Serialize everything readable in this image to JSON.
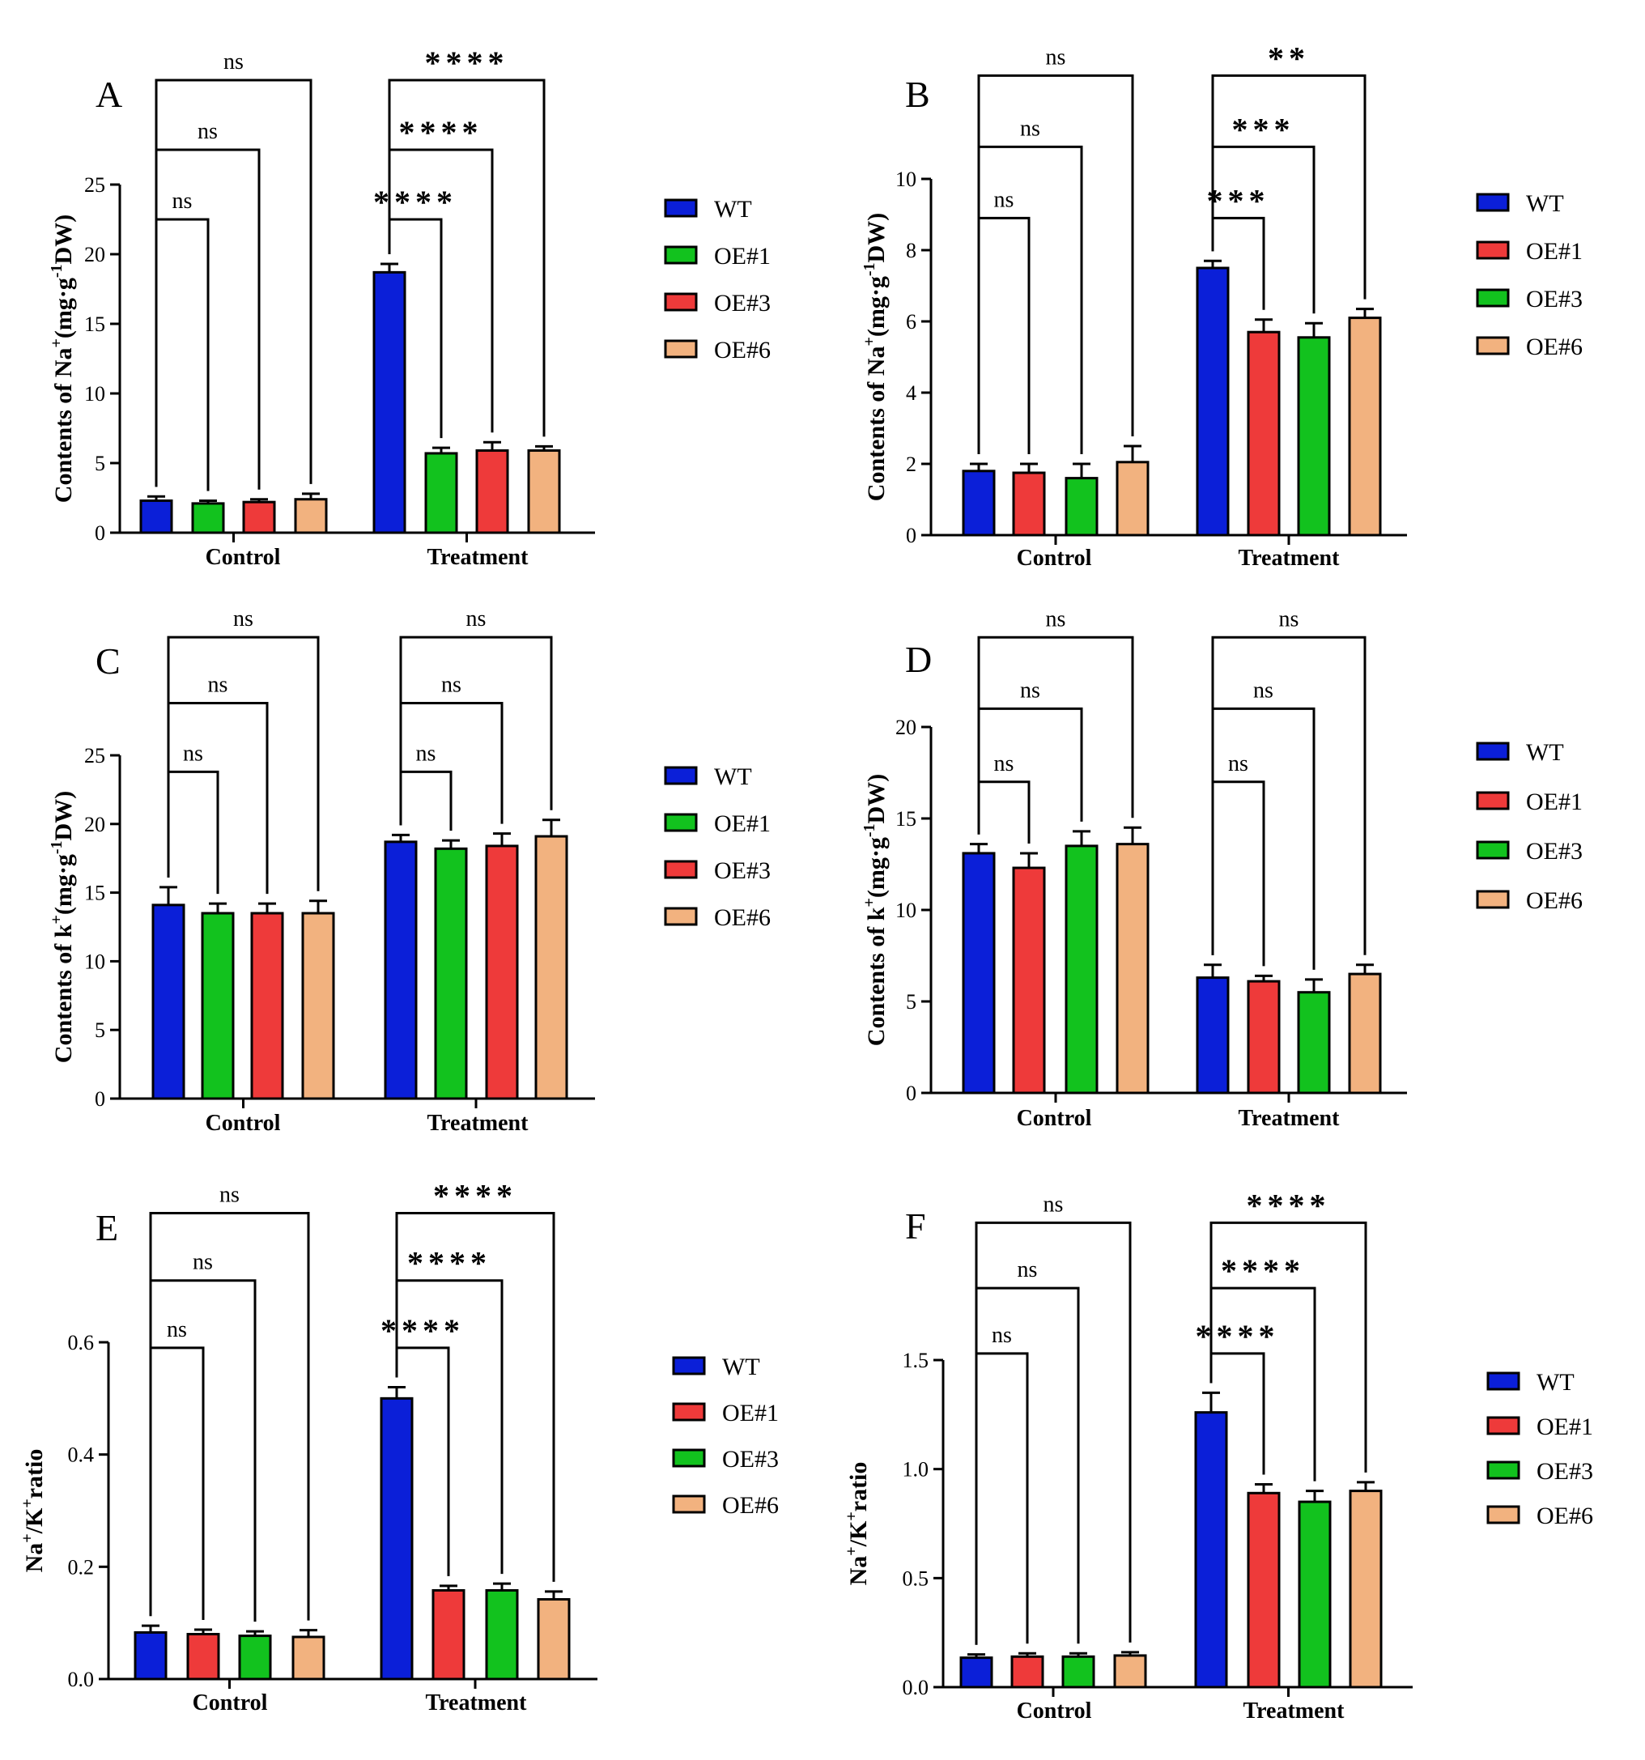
{
  "chart_data": [
    {
      "panel": "A",
      "type": "bar",
      "ylabel_main": "Contents of Na",
      "ylabel_sup1": "+",
      "ylabel_mid": "(mg·g",
      "ylabel_sup2": "-1",
      "ylabel_end": "DW)",
      "ylim": [
        0,
        25
      ],
      "yticks": [
        0,
        5,
        10,
        15,
        20,
        25
      ],
      "ytick_labels": [
        "0",
        "5",
        "10",
        "15",
        "20",
        "25"
      ],
      "categories": [
        "Control",
        "Treatment"
      ],
      "series": [
        {
          "name": "WT",
          "color": "#0b1fd8",
          "values": [
            2.3,
            18.7
          ],
          "errors": [
            0.3,
            0.6
          ]
        },
        {
          "name": "OE#1",
          "color": "#12c21e",
          "values": [
            2.1,
            5.7
          ],
          "errors": [
            0.2,
            0.4
          ]
        },
        {
          "name": "OE#3",
          "color": "#ee3a3a",
          "values": [
            2.2,
            5.9
          ],
          "errors": [
            0.2,
            0.6
          ]
        },
        {
          "name": "OE#6",
          "color": "#f2b27f",
          "values": [
            2.4,
            5.9
          ],
          "errors": [
            0.4,
            0.3
          ]
        }
      ],
      "legend": [
        "WT",
        "OE#1",
        "OE#3",
        "OE#6"
      ],
      "legend_colors": [
        "#0b1fd8",
        "#12c21e",
        "#ee3a3a",
        "#f2b27f"
      ],
      "brackets": [
        {
          "group": 0,
          "to": 1,
          "label": "ns",
          "top": 22.5
        },
        {
          "group": 0,
          "to": 2,
          "label": "ns",
          "top": 27.5
        },
        {
          "group": 0,
          "to": 3,
          "label": "ns",
          "top": 32.5
        },
        {
          "group": 1,
          "to": 1,
          "label": "****",
          "top": 22.5
        },
        {
          "group": 1,
          "to": 2,
          "label": "****",
          "top": 27.5
        },
        {
          "group": 1,
          "to": 3,
          "label": "****",
          "top": 32.5
        }
      ]
    },
    {
      "panel": "B",
      "type": "bar",
      "ylabel_main": "Contents of  Na",
      "ylabel_sup1": "+",
      "ylabel_mid": "(mg·g",
      "ylabel_sup2": "-1",
      "ylabel_end": "DW)",
      "ylim": [
        0,
        10
      ],
      "yticks": [
        0,
        2,
        4,
        6,
        8,
        10
      ],
      "ytick_labels": [
        "0",
        "2",
        "4",
        "6",
        "8",
        "10"
      ],
      "categories": [
        "Control",
        "Treatment"
      ],
      "series": [
        {
          "name": "WT",
          "color": "#0b1fd8",
          "values": [
            1.8,
            7.5
          ],
          "errors": [
            0.2,
            0.2
          ]
        },
        {
          "name": "OE#1",
          "color": "#ee3a3a",
          "values": [
            1.75,
            5.7
          ],
          "errors": [
            0.25,
            0.35
          ]
        },
        {
          "name": "OE#3",
          "color": "#12c21e",
          "values": [
            1.6,
            5.55
          ],
          "errors": [
            0.4,
            0.4
          ]
        },
        {
          "name": "OE#6",
          "color": "#f2b27f",
          "values": [
            2.05,
            6.1
          ],
          "errors": [
            0.45,
            0.25
          ]
        }
      ],
      "legend": [
        "WT",
        "OE#1",
        "OE#3",
        "OE#6"
      ],
      "legend_colors": [
        "#0b1fd8",
        "#ee3a3a",
        "#12c21e",
        "#f2b27f"
      ],
      "brackets": [
        {
          "group": 0,
          "to": 1,
          "label": "ns",
          "top": 8.9
        },
        {
          "group": 0,
          "to": 2,
          "label": "ns",
          "top": 10.9
        },
        {
          "group": 0,
          "to": 3,
          "label": "ns",
          "top": 12.9
        },
        {
          "group": 1,
          "to": 1,
          "label": "***",
          "top": 8.9
        },
        {
          "group": 1,
          "to": 2,
          "label": "***",
          "top": 10.9
        },
        {
          "group": 1,
          "to": 3,
          "label": "**",
          "top": 12.9
        }
      ]
    },
    {
      "panel": "C",
      "type": "bar",
      "ylabel_main": "Contents of k",
      "ylabel_sup1": "+",
      "ylabel_mid": "(mg·g",
      "ylabel_sup2": "-1",
      "ylabel_end": "DW)",
      "ylim": [
        0,
        25
      ],
      "yticks": [
        0,
        5,
        10,
        15,
        20,
        25
      ],
      "ytick_labels": [
        "0",
        "5",
        "10",
        "15",
        "20",
        "25"
      ],
      "categories": [
        "Control",
        "Treatment"
      ],
      "series": [
        {
          "name": "WT",
          "color": "#0b1fd8",
          "values": [
            14.1,
            18.7
          ],
          "errors": [
            1.3,
            0.5
          ]
        },
        {
          "name": "OE#1",
          "color": "#12c21e",
          "values": [
            13.5,
            18.2
          ],
          "errors": [
            0.7,
            0.6
          ]
        },
        {
          "name": "OE#3",
          "color": "#ee3a3a",
          "values": [
            13.5,
            18.4
          ],
          "errors": [
            0.7,
            0.9
          ]
        },
        {
          "name": "OE#6",
          "color": "#f2b27f",
          "values": [
            13.5,
            19.1
          ],
          "errors": [
            0.9,
            1.2
          ]
        }
      ],
      "legend": [
        "WT",
        "OE#1",
        "OE#3",
        "OE#6"
      ],
      "legend_colors": [
        "#0b1fd8",
        "#12c21e",
        "#ee3a3a",
        "#f2b27f"
      ],
      "brackets": [
        {
          "group": 0,
          "to": 1,
          "label": "ns",
          "top": 23.8
        },
        {
          "group": 0,
          "to": 2,
          "label": "ns",
          "top": 28.8
        },
        {
          "group": 0,
          "to": 3,
          "label": "ns",
          "top": 33.6
        },
        {
          "group": 1,
          "to": 1,
          "label": "ns",
          "top": 23.8
        },
        {
          "group": 1,
          "to": 2,
          "label": "ns",
          "top": 28.8
        },
        {
          "group": 1,
          "to": 3,
          "label": "ns",
          "top": 33.6
        }
      ]
    },
    {
      "panel": "D",
      "type": "bar",
      "ylabel_main": "Contents of k",
      "ylabel_sup1": "+",
      "ylabel_mid": "(mg·g",
      "ylabel_sup2": "-1",
      "ylabel_end": "DW)",
      "ylim": [
        0,
        20
      ],
      "yticks": [
        0,
        5,
        10,
        15,
        20
      ],
      "ytick_labels": [
        "0",
        "5",
        "10",
        "15",
        "20"
      ],
      "categories": [
        "Control",
        "Treatment"
      ],
      "series": [
        {
          "name": "WT",
          "color": "#0b1fd8",
          "values": [
            13.1,
            6.3
          ],
          "errors": [
            0.5,
            0.7
          ]
        },
        {
          "name": "OE#1",
          "color": "#ee3a3a",
          "values": [
            12.3,
            6.1
          ],
          "errors": [
            0.8,
            0.3
          ]
        },
        {
          "name": "OE#3",
          "color": "#12c21e",
          "values": [
            13.5,
            5.5
          ],
          "errors": [
            0.8,
            0.7
          ]
        },
        {
          "name": "OE#6",
          "color": "#f2b27f",
          "values": [
            13.6,
            6.5
          ],
          "errors": [
            0.9,
            0.5
          ]
        }
      ],
      "legend": [
        "WT",
        "OE#1",
        "OE#3",
        "OE#6"
      ],
      "legend_colors": [
        "#0b1fd8",
        "#ee3a3a",
        "#12c21e",
        "#f2b27f"
      ],
      "brackets": [
        {
          "group": 0,
          "to": 1,
          "label": "ns",
          "top": 17.0
        },
        {
          "group": 0,
          "to": 2,
          "label": "ns",
          "top": 21.0
        },
        {
          "group": 0,
          "to": 3,
          "label": "ns",
          "top": 24.9
        },
        {
          "group": 1,
          "to": 1,
          "label": "ns",
          "top": 17.0
        },
        {
          "group": 1,
          "to": 2,
          "label": "ns",
          "top": 21.0
        },
        {
          "group": 1,
          "to": 3,
          "label": "ns",
          "top": 24.9
        }
      ]
    },
    {
      "panel": "E",
      "type": "bar",
      "ylabel_main": "Na",
      "ylabel_sup1": "+",
      "ylabel_mid": "/K",
      "ylabel_sup2": "+",
      "ylabel_end": "ratio",
      "ylim": [
        0,
        0.6
      ],
      "yticks": [
        0,
        0.2,
        0.4,
        0.6
      ],
      "ytick_labels": [
        "0.0",
        "0.2",
        "0.4",
        "0.6"
      ],
      "categories": [
        "Control",
        "Treatment"
      ],
      "series": [
        {
          "name": "WT",
          "color": "#0b1fd8",
          "values": [
            0.083,
            0.5
          ],
          "errors": [
            0.012,
            0.02
          ]
        },
        {
          "name": "OE#1",
          "color": "#ee3a3a",
          "values": [
            0.08,
            0.158
          ],
          "errors": [
            0.008,
            0.008
          ]
        },
        {
          "name": "OE#3",
          "color": "#12c21e",
          "values": [
            0.077,
            0.158
          ],
          "errors": [
            0.008,
            0.012
          ]
        },
        {
          "name": "OE#6",
          "color": "#f2b27f",
          "values": [
            0.075,
            0.142
          ],
          "errors": [
            0.012,
            0.014
          ]
        }
      ],
      "legend": [
        "WT",
        "OE#1",
        "OE#3",
        "OE#6"
      ],
      "legend_colors": [
        "#0b1fd8",
        "#ee3a3a",
        "#12c21e",
        "#f2b27f"
      ],
      "brackets": [
        {
          "group": 0,
          "to": 1,
          "label": "ns",
          "top": 0.59
        },
        {
          "group": 0,
          "to": 2,
          "label": "ns",
          "top": 0.71
        },
        {
          "group": 0,
          "to": 3,
          "label": "ns",
          "top": 0.83
        },
        {
          "group": 1,
          "to": 1,
          "label": "****",
          "top": 0.59
        },
        {
          "group": 1,
          "to": 2,
          "label": "****",
          "top": 0.71
        },
        {
          "group": 1,
          "to": 3,
          "label": "****",
          "top": 0.83
        }
      ]
    },
    {
      "panel": "F",
      "type": "bar",
      "ylabel_main": "Na",
      "ylabel_sup1": "+",
      "ylabel_mid": "/K",
      "ylabel_sup2": "+",
      "ylabel_end": "ratio",
      "ylim": [
        0,
        1.5
      ],
      "yticks": [
        0,
        0.5,
        1.0,
        1.5
      ],
      "ytick_labels": [
        "0.0",
        "0.5",
        "1.0",
        "1.5"
      ],
      "categories": [
        "Control",
        "Treatment"
      ],
      "series": [
        {
          "name": "WT",
          "color": "#0b1fd8",
          "values": [
            0.135,
            1.26
          ],
          "errors": [
            0.015,
            0.09
          ]
        },
        {
          "name": "OE#1",
          "color": "#ee3a3a",
          "values": [
            0.14,
            0.89
          ],
          "errors": [
            0.015,
            0.04
          ]
        },
        {
          "name": "OE#3",
          "color": "#12c21e",
          "values": [
            0.14,
            0.85
          ],
          "errors": [
            0.015,
            0.05
          ]
        },
        {
          "name": "OE#6",
          "color": "#f2b27f",
          "values": [
            0.145,
            0.9
          ],
          "errors": [
            0.015,
            0.04
          ]
        }
      ],
      "legend": [
        "WT",
        "OE#1",
        "OE#3",
        "OE#6"
      ],
      "legend_colors": [
        "#0b1fd8",
        "#ee3a3a",
        "#12c21e",
        "#f2b27f"
      ],
      "brackets": [
        {
          "group": 0,
          "to": 1,
          "label": "ns",
          "top": 1.53
        },
        {
          "group": 0,
          "to": 2,
          "label": "ns",
          "top": 1.83
        },
        {
          "group": 0,
          "to": 3,
          "label": "ns",
          "top": 2.13
        },
        {
          "group": 1,
          "to": 1,
          "label": "****",
          "top": 1.53
        },
        {
          "group": 1,
          "to": 2,
          "label": "****",
          "top": 1.83
        },
        {
          "group": 1,
          "to": 3,
          "label": "****",
          "top": 2.13
        }
      ]
    }
  ]
}
